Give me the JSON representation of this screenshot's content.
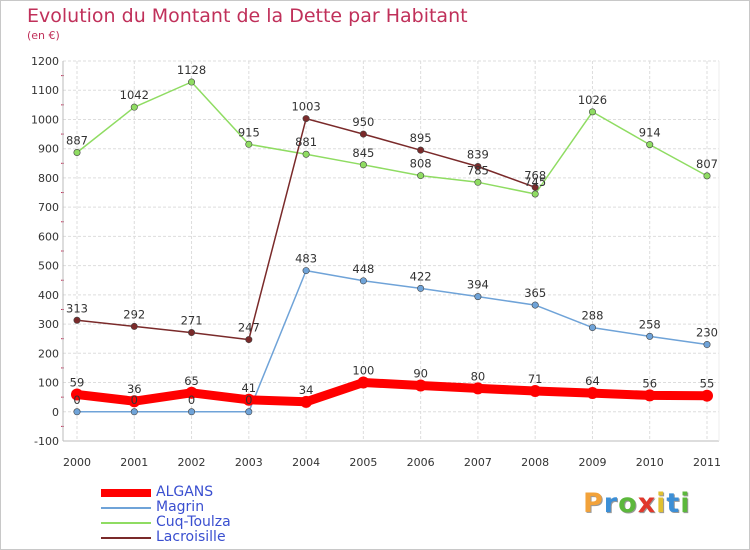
{
  "header": {
    "title": "Evolution du Montant de la Dette par Habitant",
    "subtitle": "(en €)"
  },
  "logo": {
    "text": "Proxiti",
    "letters": [
      "P",
      "r",
      "o",
      "x",
      "i",
      "t",
      "i"
    ],
    "colors": [
      "#f2a23a",
      "#3c8fd6",
      "#5cb83c",
      "#e0382c",
      "#e0c030",
      "#3c8fd6",
      "#5cb83c"
    ]
  },
  "chart_data": {
    "type": "line",
    "title": "Evolution du Montant de la Dette par Habitant",
    "subtitle": "(en €)",
    "xlabel": "",
    "ylabel": "",
    "categories": [
      "2000",
      "2001",
      "2002",
      "2003",
      "2004",
      "2005",
      "2006",
      "2007",
      "2008",
      "2009",
      "2010",
      "2011"
    ],
    "ylim": [
      -100,
      1200
    ],
    "yticks": [
      -100,
      0,
      100,
      200,
      300,
      400,
      500,
      600,
      700,
      800,
      900,
      1000,
      1100,
      1200
    ],
    "grid": true,
    "legend_position": "bottom-left",
    "series": [
      {
        "name": "ALGANS",
        "color": "#ff0000",
        "values": [
          59,
          36,
          65,
          41,
          34,
          100,
          90,
          80,
          71,
          64,
          56,
          55
        ]
      },
      {
        "name": "Magrin",
        "color": "#6fa3d8",
        "values": [
          0,
          0,
          0,
          0,
          483,
          448,
          422,
          394,
          365,
          288,
          258,
          230
        ]
      },
      {
        "name": "Cuq-Toulza",
        "color": "#8fdc62",
        "values": [
          887,
          1042,
          1128,
          915,
          881,
          845,
          808,
          785,
          745,
          1026,
          914,
          807
        ]
      },
      {
        "name": "Lacroisille",
        "color": "#7a2a2a",
        "values": [
          313,
          292,
          271,
          247,
          1003,
          950,
          895,
          839,
          768,
          null,
          null,
          null
        ]
      }
    ]
  }
}
